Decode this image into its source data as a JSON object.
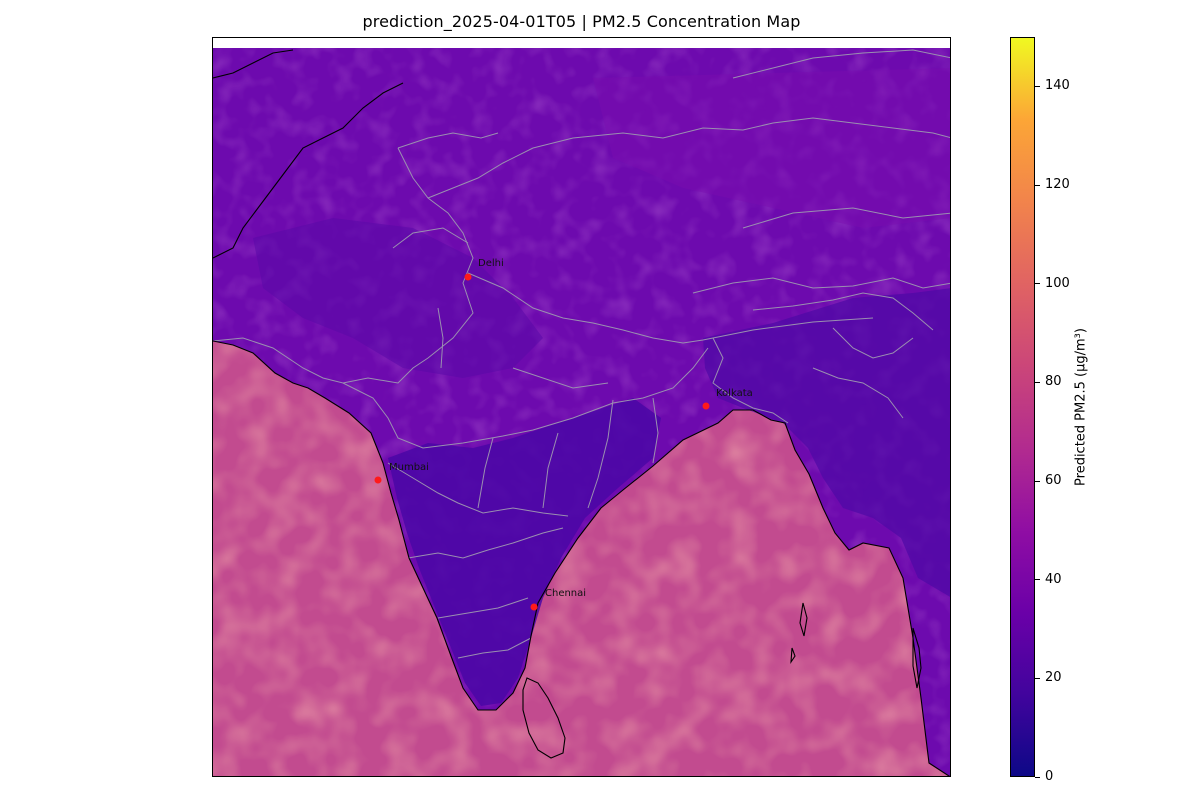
{
  "title": "prediction_2025-04-01T05 | PM2.5 Concentration Map",
  "colors": {
    "land_low": "#4b06a5",
    "land_mid": "#7a0bb0",
    "sea_main": "#c24b8f",
    "sea_high": "#db6a79",
    "coastline": "#000000",
    "border": "#9a8fb0",
    "city_marker": "#ff1a1a"
  },
  "colorbar": {
    "label": "Predicted PM2.5 (μg/m³)",
    "colormap": "plasma",
    "min": 0,
    "max": 150,
    "ticks": [
      "0",
      "20",
      "40",
      "60",
      "80",
      "100",
      "120",
      "140"
    ]
  },
  "cities": [
    {
      "name": "Delhi"
    },
    {
      "name": "Kolkata"
    },
    {
      "name": "Mumbai"
    },
    {
      "name": "Chennai"
    }
  ]
}
